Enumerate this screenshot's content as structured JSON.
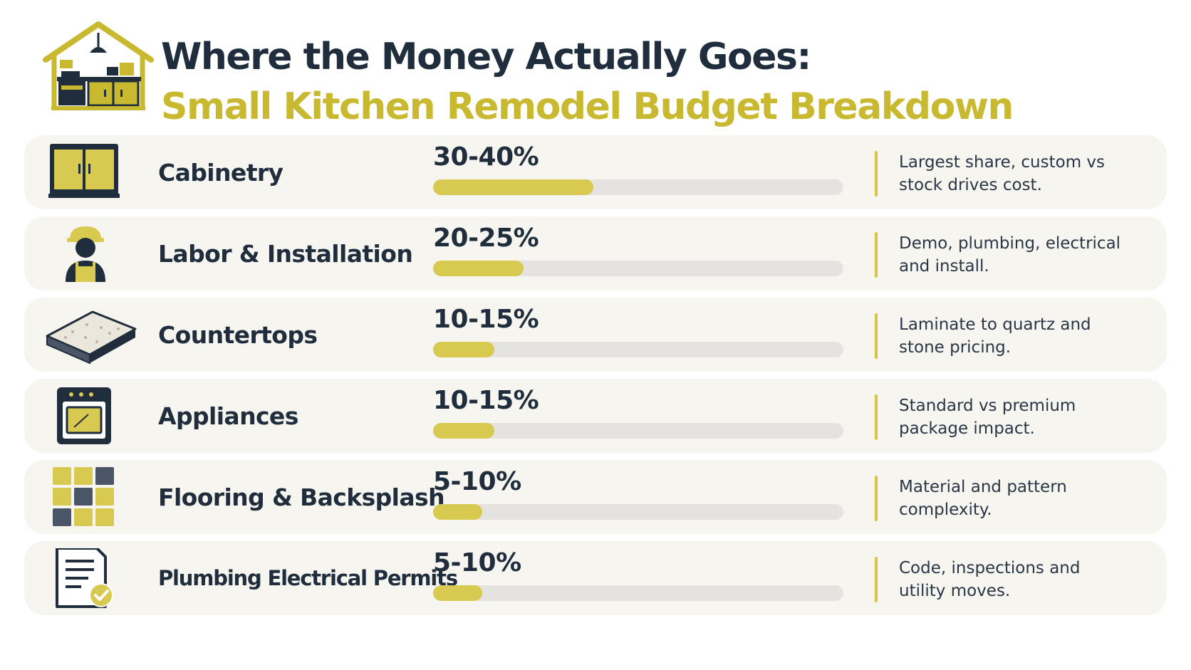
{
  "header": {
    "title_line1": "Where the Money Actually Goes:",
    "title_line2": "Small Kitchen Remodel Budget Breakdown",
    "icon": "kitchen-house-icon"
  },
  "colors": {
    "accent": "#c9b930",
    "navy": "#1f2d3d",
    "row_background": "#f6f5ef",
    "bar_track": "#e4e3df",
    "bar_fill": "#d8c950"
  },
  "categories": [
    {
      "label": "Cabinetry",
      "percent": "30-40%",
      "bar_fill_fraction": 0.39,
      "note_line1": "Largest share, custom vs",
      "note_line2": "stock drives cost.",
      "icon": "cabinet-icon"
    },
    {
      "label": "Labor & Installation",
      "percent": "20-25%",
      "bar_fill_fraction": 0.22,
      "note_line1": "Demo, plumbing, electrical",
      "note_line2": "and install.",
      "icon": "worker-icon"
    },
    {
      "label": "Countertops",
      "percent": "10-15%",
      "bar_fill_fraction": 0.15,
      "note_line1": "Laminate to quartz and",
      "note_line2": "stone pricing.",
      "icon": "countertop-slab-icon"
    },
    {
      "label": "Appliances",
      "percent": "10-15%",
      "bar_fill_fraction": 0.15,
      "note_line1": "Standard vs premium",
      "note_line2": "package impact.",
      "icon": "oven-icon"
    },
    {
      "label": "Flooring & Backsplash",
      "percent": "5-10%",
      "bar_fill_fraction": 0.12,
      "note_line1": "Material and pattern",
      "note_line2": "complexity.",
      "icon": "tiles-icon"
    },
    {
      "label": "Plumbing Electrical Permits",
      "percent": "5-10%",
      "bar_fill_fraction": 0.12,
      "note_line1": "Code, inspections and",
      "note_line2": "utility moves.",
      "icon": "permit-document-icon"
    }
  ]
}
